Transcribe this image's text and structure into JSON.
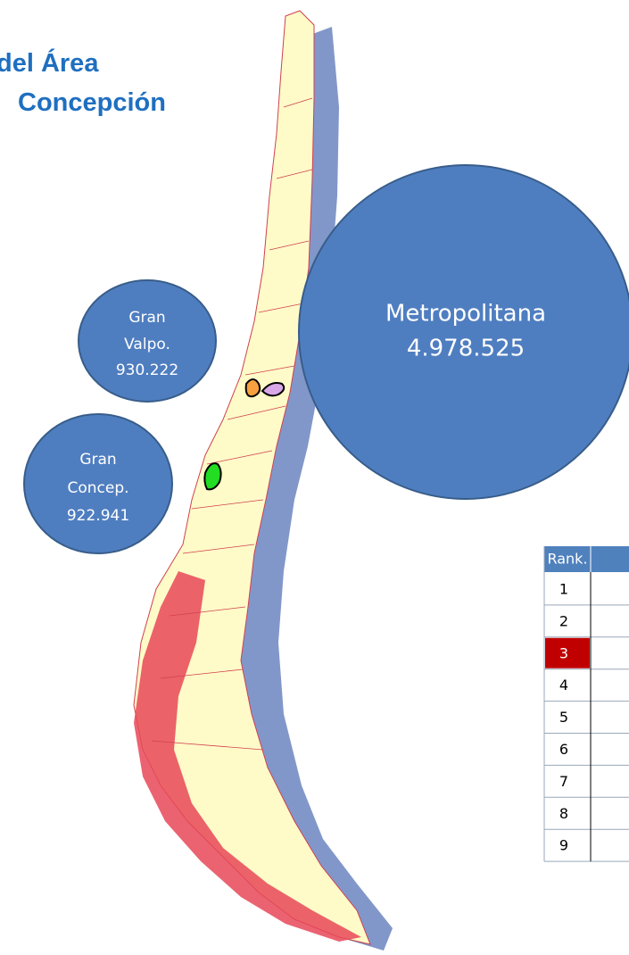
{
  "title": {
    "lines": [
      "del Área",
      "Concepción"
    ]
  },
  "bubbles": [
    {
      "lines": [
        "Metropolitana",
        "4.978.525"
      ]
    },
    {
      "lines": [
        "Gran",
        "Valpo.",
        "930.222"
      ]
    },
    {
      "lines": [
        "Gran",
        "Concep.",
        "922.941"
      ]
    }
  ],
  "table": {
    "header": "Rank.",
    "rows": [
      "1",
      "2",
      "3",
      "4",
      "5",
      "6",
      "7",
      "8",
      "9"
    ],
    "highlight_row": 2
  }
}
